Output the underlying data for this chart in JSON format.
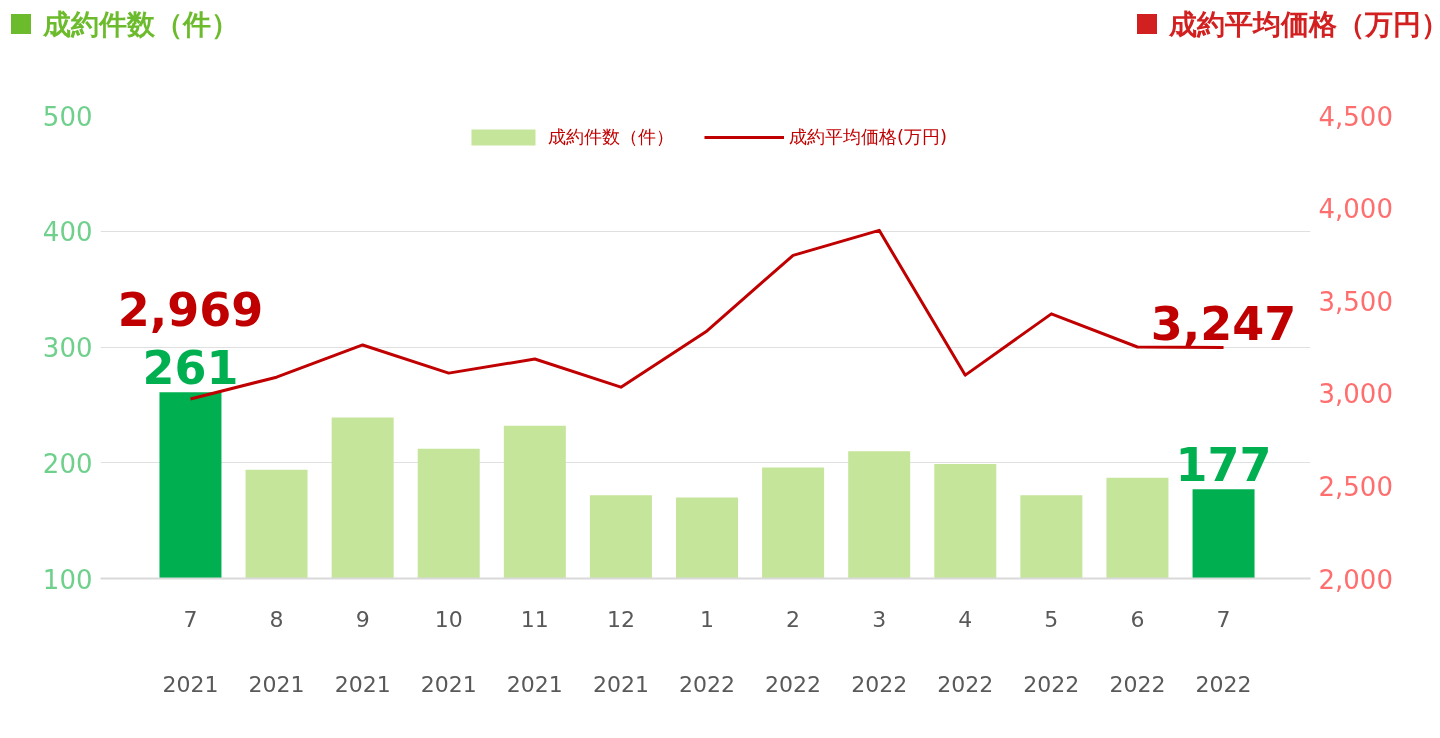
{
  "chart_data": {
    "type": "bar",
    "ylabel": "成約件数（件）",
    "y2label": "成約平均価格（万円）",
    "categories": [
      "7\n2021",
      "8\n2021",
      "9\n2021",
      "10\n2021",
      "11\n2021",
      "12\n2021",
      "1\n2022",
      "2\n2022",
      "3\n2022",
      "4\n2022",
      "5\n2022",
      "6\n2022",
      "7\n2022"
    ],
    "series": [
      {
        "name": "成約件数（件）",
        "color": "#c4e59a",
        "colors": [
          "#00b050",
          "#c4e59a",
          "#c4e59a",
          "#c4e59a",
          "#c4e59a",
          "#c4e59a",
          "#c4e59a",
          "#c4e59a",
          "#c4e59a",
          "#c4e59a",
          "#c4e59a",
          "#c4e59a",
          "#00b050"
        ],
        "values": [
          261,
          194,
          239,
          212,
          232,
          172,
          170,
          196,
          210,
          199,
          172,
          187,
          177
        ],
        "value_labels": [
          "261",
          null,
          null,
          null,
          null,
          null,
          null,
          null,
          null,
          null,
          null,
          null,
          "177"
        ]
      },
      {
        "name": "成約平均価格(万円)",
        "type": "line",
        "axis": "y2",
        "color": "#c00000",
        "values": [
          2969,
          3087,
          3261,
          3109,
          3185,
          3033,
          3337,
          3745,
          3880,
          3098,
          3429,
          3250,
          3247
        ],
        "value_labels": [
          "2,969",
          null,
          null,
          null,
          null,
          null,
          null,
          null,
          null,
          null,
          null,
          null,
          "3,247"
        ]
      }
    ],
    "ylim": [
      100,
      500
    ],
    "yticks": [
      100,
      200,
      300,
      400,
      500
    ],
    "y2lim": [
      2000,
      4500
    ],
    "y2ticks": [
      {
        "value": 2000,
        "label": "2,000"
      },
      {
        "value": 2500,
        "label": "2,500"
      },
      {
        "value": 3000,
        "label": "3,000"
      },
      {
        "value": 3500,
        "label": "3,500"
      },
      {
        "value": 4000,
        "label": "4,000"
      },
      {
        "value": 4500,
        "label": "4,500"
      }
    ],
    "grid": "y",
    "legend": "top",
    "marker": "none"
  }
}
